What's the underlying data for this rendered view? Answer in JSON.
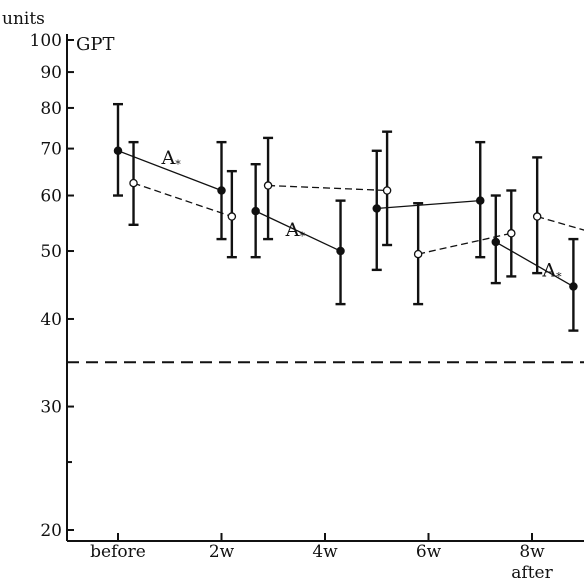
{
  "chart_data": {
    "type": "line",
    "units_label": "units",
    "panel_label": "GPT",
    "y_scale": "log",
    "ylim": [
      20,
      100
    ],
    "y_ticks": [
      {
        "value": 20,
        "label": "20"
      },
      {
        "value": 30,
        "label": "30"
      },
      {
        "value": 40,
        "label": "40"
      },
      {
        "value": 50,
        "label": "50"
      },
      {
        "value": 60,
        "label": "60"
      },
      {
        "value": 70,
        "label": "70"
      },
      {
        "value": 80,
        "label": "80"
      },
      {
        "value": 90,
        "label": "90"
      },
      {
        "value": 100,
        "label": "100"
      }
    ],
    "y_minor_ticks": [
      25
    ],
    "categories": [
      "before",
      "2w",
      "4w",
      "6w",
      "8w"
    ],
    "category_sublabels": [
      "",
      "",
      "",
      "",
      "after"
    ],
    "reference_line": {
      "value": 34.7,
      "style": "dashed"
    },
    "series": [
      {
        "style": "solid",
        "marker": "filled",
        "points": [
          {
            "x": 0.0,
            "y": 69.5,
            "low": 60.0,
            "high": 81.0
          },
          {
            "x": 1.0,
            "y": 61.0,
            "low": 52.0,
            "high": 71.5
          },
          {
            "x": 1.33,
            "y": 57.0,
            "low": 49.0,
            "high": 66.5
          },
          {
            "x": 2.15,
            "y": 50.0,
            "low": 42.0,
            "high": 59.0
          },
          {
            "x": 2.5,
            "y": 57.5,
            "low": 47.0,
            "high": 69.5
          },
          {
            "x": 3.5,
            "y": 59.0,
            "low": 49.0,
            "high": 71.5
          },
          {
            "x": 3.65,
            "y": 51.5,
            "low": 45.0,
            "high": 60.0
          },
          {
            "x": 4.4,
            "y": 44.5,
            "low": 38.5,
            "high": 52.0
          }
        ]
      },
      {
        "style": "dashed",
        "marker": "open",
        "points": [
          {
            "x": 0.15,
            "y": 62.5,
            "low": 54.5,
            "high": 71.5
          },
          {
            "x": 1.1,
            "y": 56.0,
            "low": 49.0,
            "high": 65.0
          },
          {
            "x": 1.45,
            "y": 62.0,
            "low": 52.0,
            "high": 72.5
          },
          {
            "x": 2.6,
            "y": 61.0,
            "low": 51.0,
            "high": 74.0
          },
          {
            "x": 2.9,
            "y": 49.5,
            "low": 42.0,
            "high": 58.5
          },
          {
            "x": 3.8,
            "y": 53.0,
            "low": 46.0,
            "high": 61.0
          },
          {
            "x": 4.05,
            "y": 56.0,
            "low": 46.5,
            "high": 68.0
          },
          {
            "x": 4.9,
            "y": 51.5,
            "low": 41.5,
            "high": 65.0
          }
        ]
      }
    ],
    "annotations": [
      {
        "text": "A",
        "subscript": "*",
        "x": 0.42,
        "y": 66.5
      },
      {
        "text": "A",
        "subscript": "*",
        "x": 1.62,
        "y": 52.5
      },
      {
        "text": "A",
        "subscript": "*",
        "x": 4.1,
        "y": 46.0
      }
    ]
  }
}
